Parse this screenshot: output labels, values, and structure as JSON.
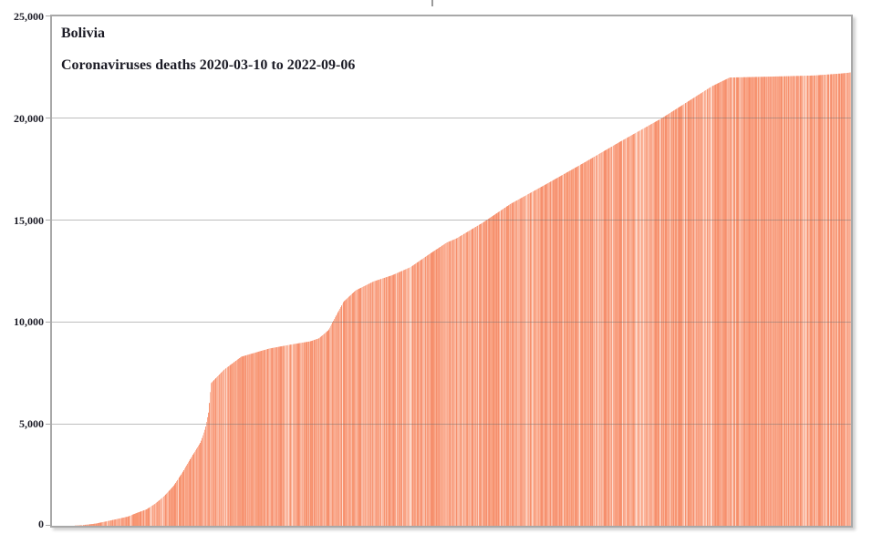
{
  "chart_data": {
    "type": "bar",
    "title": "Bolivia",
    "subtitle": "Coronaviruses deaths 2020-03-10 to 2022-09-06",
    "x_start": "2020-03-10",
    "x_end": "2022-09-06",
    "ylabel": "",
    "xlabel": "",
    "ylim": [
      0,
      25000
    ],
    "grid": true,
    "legend_position": "none",
    "y_tick_labels": [
      "25,000",
      "20,000",
      "15,000",
      "10,000",
      "5,000",
      "0"
    ],
    "y_tick_values": [
      25000,
      20000,
      15000,
      10000,
      5000,
      0
    ],
    "bar_color": "#f89c7e",
    "bar_palette": [
      "#f68f6d",
      "#f79672",
      "#f89c7e",
      "#f9a384",
      "#faab90",
      "#fbb59c",
      "#fabca6"
    ],
    "bar_light": "#fdd8ca",
    "text_color": "#1c1c26",
    "grid_color": "#c2c2c2",
    "frame_color": "#a8a8a8",
    "points": [
      {
        "x": 0.0,
        "v": 0
      },
      {
        "x": 0.025,
        "v": 5
      },
      {
        "x": 0.038,
        "v": 30
      },
      {
        "x": 0.055,
        "v": 110
      },
      {
        "x": 0.072,
        "v": 250
      },
      {
        "x": 0.095,
        "v": 450
      },
      {
        "x": 0.106,
        "v": 630
      },
      {
        "x": 0.118,
        "v": 800
      },
      {
        "x": 0.129,
        "v": 1080
      },
      {
        "x": 0.14,
        "v": 1440
      },
      {
        "x": 0.152,
        "v": 1950
      },
      {
        "x": 0.163,
        "v": 2600
      },
      {
        "x": 0.175,
        "v": 3400
      },
      {
        "x": 0.186,
        "v": 4100
      },
      {
        "x": 0.192,
        "v": 4800
      },
      {
        "x": 0.196,
        "v": 5600
      },
      {
        "x": 0.199,
        "v": 7000
      },
      {
        "x": 0.215,
        "v": 7650
      },
      {
        "x": 0.237,
        "v": 8300
      },
      {
        "x": 0.272,
        "v": 8700
      },
      {
        "x": 0.3,
        "v": 8900
      },
      {
        "x": 0.323,
        "v": 9050
      },
      {
        "x": 0.334,
        "v": 9200
      },
      {
        "x": 0.346,
        "v": 9600
      },
      {
        "x": 0.354,
        "v": 10200
      },
      {
        "x": 0.365,
        "v": 11000
      },
      {
        "x": 0.38,
        "v": 11550
      },
      {
        "x": 0.403,
        "v": 12000
      },
      {
        "x": 0.426,
        "v": 12300
      },
      {
        "x": 0.449,
        "v": 12700
      },
      {
        "x": 0.471,
        "v": 13300
      },
      {
        "x": 0.494,
        "v": 13900
      },
      {
        "x": 0.506,
        "v": 14100
      },
      {
        "x": 0.54,
        "v": 14900
      },
      {
        "x": 0.574,
        "v": 15800
      },
      {
        "x": 0.62,
        "v": 16800
      },
      {
        "x": 0.665,
        "v": 17800
      },
      {
        "x": 0.711,
        "v": 18850
      },
      {
        "x": 0.763,
        "v": 20000
      },
      {
        "x": 0.791,
        "v": 20700
      },
      {
        "x": 0.825,
        "v": 21550
      },
      {
        "x": 0.848,
        "v": 22000
      },
      {
        "x": 0.905,
        "v": 22050
      },
      {
        "x": 0.954,
        "v": 22100
      },
      {
        "x": 0.988,
        "v": 22200
      },
      {
        "x": 1.0,
        "v": 22250
      }
    ]
  }
}
